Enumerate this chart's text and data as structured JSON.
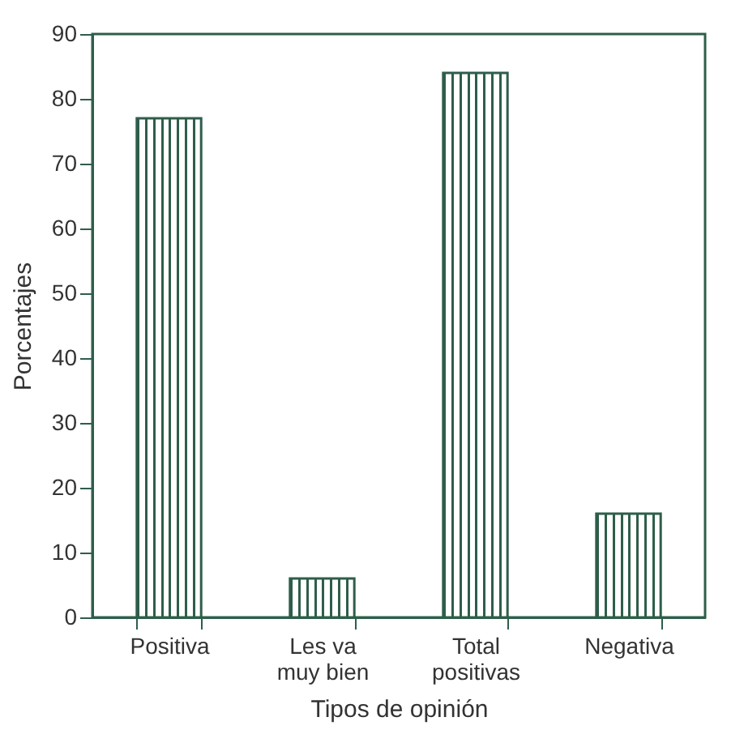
{
  "chart_data": {
    "type": "bar",
    "xlabel": "Tipos de opinión",
    "ylabel": "Porcentajes",
    "categories": [
      "Positiva",
      "Les va muy bien",
      "Total positivas",
      "Negativa"
    ],
    "values": [
      77,
      6,
      84,
      16
    ],
    "color": "#2e5e4a",
    "ylim": [
      0,
      90
    ],
    "yticks": [
      0,
      10,
      20,
      30,
      40,
      50,
      60,
      70,
      80,
      90
    ],
    "grid": false
  }
}
